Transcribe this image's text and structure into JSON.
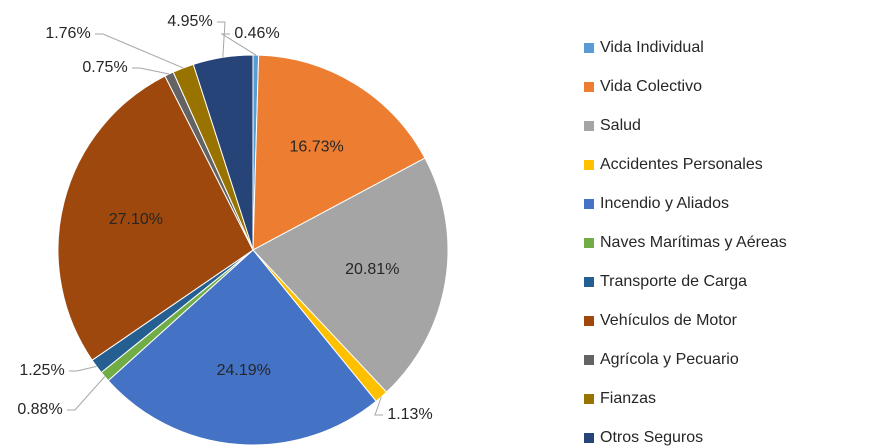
{
  "chart_data": {
    "type": "pie",
    "categories": [
      "Vida Individual",
      "Vida Colectivo",
      "Salud",
      "Accidentes Personales",
      "Incendio y Aliados",
      "Naves Marítimas y Aéreas",
      "Transporte de Carga",
      "Vehículos de Motor",
      "Agrícola y Pecuario",
      "Fianzas",
      "Otros Seguros"
    ],
    "values": [
      0.46,
      16.73,
      20.81,
      1.13,
      24.19,
      0.88,
      1.25,
      27.1,
      0.75,
      1.76,
      4.95
    ],
    "value_labels": [
      "0.46%",
      "16.73%",
      "20.81%",
      "1.13%",
      "24.19%",
      "0.88%",
      "1.25%",
      "27.10%",
      "0.75%",
      "1.76%",
      "4.95%"
    ],
    "colors": [
      "#5b9bd5",
      "#ed7d31",
      "#a5a5a5",
      "#ffc000",
      "#4472c4",
      "#70ad47",
      "#255e91",
      "#9e480e",
      "#636363",
      "#997300",
      "#264478"
    ],
    "legend": "right"
  }
}
